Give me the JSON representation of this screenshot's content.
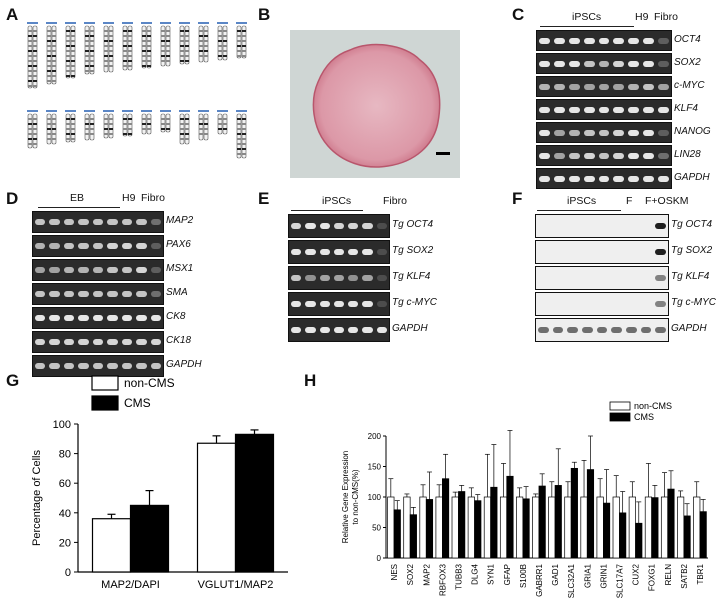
{
  "panels": {
    "a": "A",
    "b": "B",
    "c": "C",
    "d": "D",
    "e": "E",
    "f": "F",
    "g": "G",
    "h": "H"
  },
  "panel_c": {
    "group_label": "iPSCs",
    "extra_labels": [
      "H9",
      "Fibro"
    ],
    "rows": [
      "OCT4",
      "SOX2",
      "c-MYC",
      "KLF4",
      "NANOG",
      "LIN28",
      "GAPDH"
    ],
    "lanes": 9
  },
  "panel_d": {
    "group_label": "EB",
    "extra_labels": [
      "H9",
      "Fibro"
    ],
    "rows": [
      "MAP2",
      "PAX6",
      "MSX1",
      "SMA",
      "CK8",
      "CK18",
      "GAPDH"
    ],
    "lanes": 9
  },
  "panel_e": {
    "group_label": "iPSCs",
    "extra_labels": [
      "Fibro"
    ],
    "rows": [
      "Tg OCT4",
      "Tg SOX2",
      "Tg KLF4",
      "Tg c-MYC",
      "GAPDH"
    ],
    "lanes": 7
  },
  "panel_f": {
    "group_label": "iPSCs",
    "extra_labels": [
      "F",
      "F+OSKM"
    ],
    "rows": [
      "Tg OCT4",
      "Tg SOX2",
      "Tg KLF4",
      "Tg c-MYC",
      "GAPDH"
    ],
    "lanes": 9
  },
  "colors": {
    "white_bar": "#ffffff",
    "black_bar": "#000000",
    "colony": "#d98a9a"
  },
  "chart_data": [
    {
      "type": "bar",
      "panel": "G",
      "categories": [
        "MAP2/DAPI",
        "VGLUT1/MAP2"
      ],
      "series": [
        {
          "name": "non-CMS",
          "values": [
            36,
            87
          ],
          "errors": [
            3,
            5
          ]
        },
        {
          "name": "CMS",
          "values": [
            45,
            93
          ],
          "errors": [
            10,
            3
          ]
        }
      ],
      "ylabel": "Percentage of Cells",
      "ylim": [
        0,
        100
      ],
      "yticks": [
        0,
        20,
        40,
        60,
        80,
        100
      ],
      "legend": "top-left"
    },
    {
      "type": "bar",
      "panel": "H",
      "categories": [
        "NES",
        "SOX2",
        "MAP2",
        "RBFOX3",
        "TUBB3",
        "DLG4",
        "SYN1",
        "GFAP",
        "S100B",
        "GABRR1",
        "GAD1",
        "SLC32A1",
        "GRIA1",
        "GRIN1",
        "SLC17A7",
        "CUX2",
        "FOXG1",
        "RELN",
        "SATB2",
        "TBR1"
      ],
      "series": [
        {
          "name": "non-CMS",
          "values": [
            100,
            100,
            100,
            100,
            100,
            100,
            100,
            100,
            100,
            100,
            100,
            100,
            100,
            100,
            100,
            100,
            100,
            100,
            100,
            100
          ],
          "errors": [
            30,
            5,
            20,
            20,
            8,
            15,
            70,
            55,
            15,
            5,
            25,
            25,
            60,
            30,
            35,
            25,
            55,
            40,
            10,
            25
          ]
        },
        {
          "name": "CMS",
          "values": [
            79,
            71,
            96,
            130,
            109,
            94,
            116,
            134,
            97,
            118,
            119,
            147,
            145,
            90,
            74,
            57,
            99,
            113,
            69,
            76
          ],
          "errors": [
            15,
            12,
            45,
            40,
            10,
            10,
            70,
            75,
            20,
            20,
            60,
            10,
            55,
            55,
            35,
            35,
            20,
            30,
            20,
            20
          ]
        }
      ],
      "ylabel": "Relative Gene Expression to non-CMS(%)",
      "ylim": [
        0,
        200
      ],
      "yticks": [
        0,
        50,
        100,
        150,
        200
      ],
      "legend": "top-right"
    }
  ]
}
